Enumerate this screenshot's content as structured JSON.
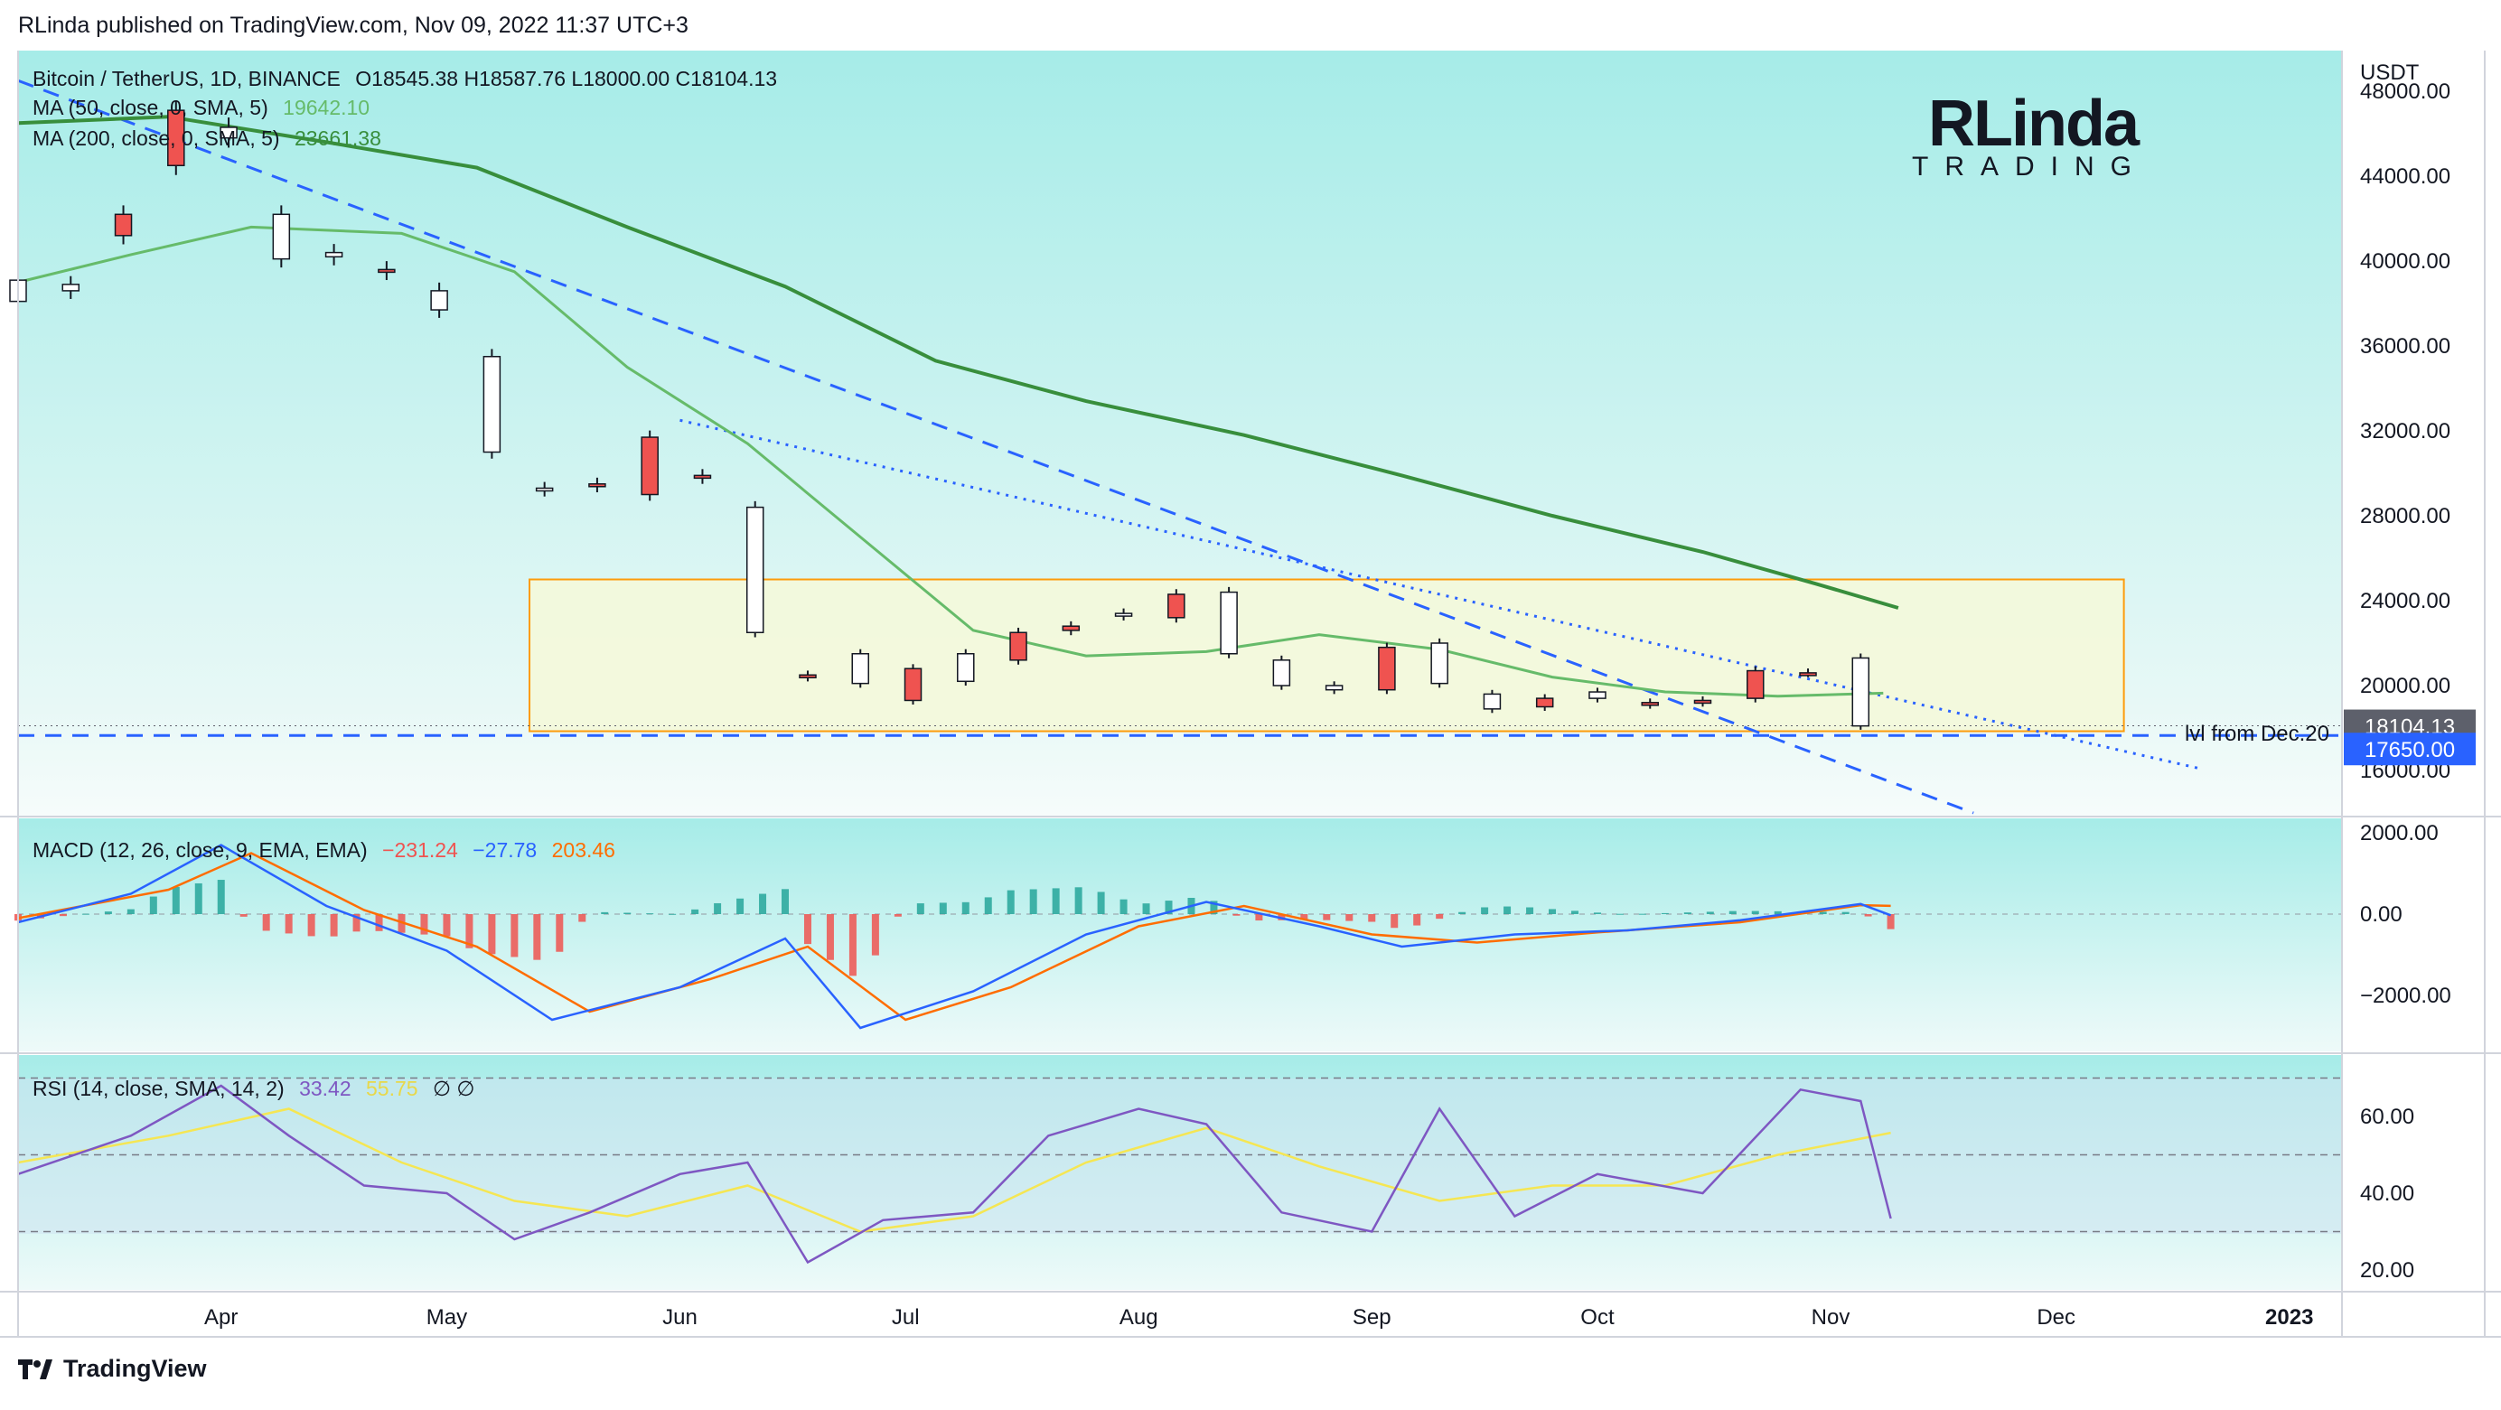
{
  "header": {
    "publisher": "RLinda published on TradingView.com, Nov 09, 2022 11:37 UTC+3"
  },
  "brand": {
    "logo_main": "RLinda",
    "logo_sub": "TRADING"
  },
  "footer": {
    "tradingview": "TradingView"
  },
  "price_legend": {
    "symbol": "Bitcoin / TetherUS, 1D, BINANCE",
    "ohlc": "O18545.38  H18587.76  L18000.00  C18104.13",
    "ma50_label": "MA (50, close, 0, SMA, 5)",
    "ma50_value": "19642.10",
    "ma200_label": "MA (200, close, 0, SMA, 5)",
    "ma200_value": "23661.38"
  },
  "macd_legend": {
    "label": "MACD (12, 26, close, 9, EMA, EMA)",
    "hist": "−231.24",
    "macd": "−27.78",
    "signal": "203.46"
  },
  "rsi_legend": {
    "label": "RSI (14, close, SMA, 14, 2)",
    "rsi": "33.42",
    "ma": "55.75",
    "extra": "∅ ∅"
  },
  "colors": {
    "up": "#ef5350",
    "down": "#26a69a",
    "ma50": "#66bb6a",
    "ma200": "#388e3c",
    "trend": "#2962ff",
    "zone_fill": "#f4fadc",
    "zone_border": "#ff9800",
    "macd_line": "#2962ff",
    "signal_line": "#ff6d00",
    "rsi_line": "#7e57c2",
    "rsi_ma": "#f5e653"
  },
  "chart_data": {
    "type": "candlestick",
    "symbol": "BTCUSDT",
    "timeframe": "1D",
    "x_ticks": [
      "Apr",
      "May",
      "Jun",
      "Jul",
      "Aug",
      "Sep",
      "Oct",
      "Nov",
      "Dec",
      "2023"
    ],
    "price_axis": {
      "unit": "USDT",
      "ticks": [
        "48000.00",
        "44000.00",
        "40000.00",
        "36000.00",
        "32000.00",
        "28000.00",
        "24000.00",
        "20000.00",
        "16000.00"
      ]
    },
    "last_price": "18104.13",
    "level_price": "17650.00",
    "level_label": "lvl from Dec.20",
    "zone": {
      "from": "2022-05-12",
      "to": "2022-12-10",
      "low": 17850,
      "high": 25000
    },
    "trendlines": [
      {
        "style": "dashed",
        "from": [
          "2022-03-05",
          48500
        ],
        "to": [
          "2022-11-20",
          14000
        ]
      },
      {
        "style": "dotted",
        "from": [
          "2022-06-01",
          32500
        ],
        "to": [
          "2022-12-20",
          16100
        ]
      },
      {
        "style": "dashed-horizontal",
        "value": 17650
      }
    ],
    "candles": [
      [
        "2022-03-05",
        39100,
        38100
      ],
      [
        "2022-03-12",
        38900,
        38600
      ],
      [
        "2022-03-19",
        41200,
        42200
      ],
      [
        "2022-03-26",
        44500,
        47100
      ],
      [
        "2022-04-02",
        46300,
        45800
      ],
      [
        "2022-04-09",
        42200,
        40100
      ],
      [
        "2022-04-16",
        40400,
        40200
      ],
      [
        "2022-04-23",
        39500,
        39600
      ],
      [
        "2022-04-30",
        38600,
        37700
      ],
      [
        "2022-05-07",
        35500,
        31000
      ],
      [
        "2022-05-14",
        29300,
        29200
      ],
      [
        "2022-05-21",
        29400,
        29500
      ],
      [
        "2022-05-28",
        29000,
        31700
      ],
      [
        "2022-06-04",
        29800,
        29900
      ],
      [
        "2022-06-11",
        28400,
        22500
      ],
      [
        "2022-06-18",
        20400,
        20500
      ],
      [
        "2022-06-25",
        21500,
        20100
      ],
      [
        "2022-07-02",
        19300,
        20800
      ],
      [
        "2022-07-09",
        21500,
        20200
      ],
      [
        "2022-07-16",
        21200,
        22500
      ],
      [
        "2022-07-23",
        22600,
        22800
      ],
      [
        "2022-07-30",
        23400,
        23300
      ],
      [
        "2022-08-06",
        23200,
        24300
      ],
      [
        "2022-08-13",
        24400,
        21500
      ],
      [
        "2022-08-20",
        21200,
        20000
      ],
      [
        "2022-08-27",
        20000,
        19800
      ],
      [
        "2022-09-03",
        19800,
        21800
      ],
      [
        "2022-09-10",
        22000,
        20100
      ],
      [
        "2022-09-17",
        19600,
        18900
      ],
      [
        "2022-09-24",
        19000,
        19400
      ],
      [
        "2022-10-01",
        19700,
        19400
      ],
      [
        "2022-10-08",
        19100,
        19200
      ],
      [
        "2022-10-15",
        19200,
        19300
      ],
      [
        "2022-10-22",
        19400,
        20700
      ],
      [
        "2022-10-29",
        20600,
        20600
      ],
      [
        "2022-11-05",
        21300,
        18100
      ]
    ],
    "ma50": [
      [
        "2022-03-05",
        39000
      ],
      [
        "2022-03-20",
        40300
      ],
      [
        "2022-04-05",
        41600
      ],
      [
        "2022-04-25",
        41300
      ],
      [
        "2022-05-10",
        39500
      ],
      [
        "2022-05-25",
        35000
      ],
      [
        "2022-06-10",
        31400
      ],
      [
        "2022-06-25",
        27000
      ],
      [
        "2022-07-10",
        22600
      ],
      [
        "2022-07-25",
        21400
      ],
      [
        "2022-08-10",
        21600
      ],
      [
        "2022-08-25",
        22400
      ],
      [
        "2022-09-10",
        21700
      ],
      [
        "2022-09-25",
        20400
      ],
      [
        "2022-10-10",
        19700
      ],
      [
        "2022-10-25",
        19500
      ],
      [
        "2022-11-08",
        19642
      ]
    ],
    "ma200": [
      [
        "2022-03-05",
        46500
      ],
      [
        "2022-03-25",
        46800
      ],
      [
        "2022-04-15",
        45600
      ],
      [
        "2022-05-05",
        44400
      ],
      [
        "2022-05-25",
        41600
      ],
      [
        "2022-06-15",
        38800
      ],
      [
        "2022-07-05",
        35300
      ],
      [
        "2022-07-25",
        33400
      ],
      [
        "2022-08-15",
        31800
      ],
      [
        "2022-09-05",
        29900
      ],
      [
        "2022-09-25",
        28000
      ],
      [
        "2022-10-15",
        26300
      ],
      [
        "2022-10-30",
        24800
      ],
      [
        "2022-11-10",
        23661
      ]
    ],
    "macd": {
      "axis_ticks": [
        "2000.00",
        "0.00",
        "−2000.00"
      ],
      "macd_line": [
        [
          "2022-03-05",
          -200
        ],
        [
          "2022-03-20",
          500
        ],
        [
          "2022-04-01",
          1700
        ],
        [
          "2022-04-15",
          200
        ],
        [
          "2022-05-01",
          -900
        ],
        [
          "2022-05-15",
          -2600
        ],
        [
          "2022-06-01",
          -1800
        ],
        [
          "2022-06-15",
          -600
        ],
        [
          "2022-06-25",
          -2800
        ],
        [
          "2022-07-10",
          -1900
        ],
        [
          "2022-07-25",
          -500
        ],
        [
          "2022-08-10",
          300
        ],
        [
          "2022-08-25",
          -300
        ],
        [
          "2022-09-05",
          -800
        ],
        [
          "2022-09-20",
          -500
        ],
        [
          "2022-10-05",
          -400
        ],
        [
          "2022-10-20",
          -150
        ],
        [
          "2022-11-05",
          250
        ],
        [
          "2022-11-09",
          -28
        ]
      ],
      "signal_line": [
        [
          "2022-03-05",
          -100
        ],
        [
          "2022-03-25",
          600
        ],
        [
          "2022-04-05",
          1500
        ],
        [
          "2022-04-20",
          100
        ],
        [
          "2022-05-05",
          -800
        ],
        [
          "2022-05-20",
          -2400
        ],
        [
          "2022-06-05",
          -1600
        ],
        [
          "2022-06-18",
          -800
        ],
        [
          "2022-07-01",
          -2600
        ],
        [
          "2022-07-15",
          -1800
        ],
        [
          "2022-08-01",
          -300
        ],
        [
          "2022-08-15",
          200
        ],
        [
          "2022-09-01",
          -500
        ],
        [
          "2022-09-15",
          -700
        ],
        [
          "2022-10-01",
          -450
        ],
        [
          "2022-10-20",
          -200
        ],
        [
          "2022-11-05",
          220
        ],
        [
          "2022-11-09",
          203
        ]
      ]
    },
    "rsi": {
      "axis_ticks": [
        "60.00",
        "40.00",
        "20.00"
      ],
      "bands": [
        70,
        50,
        30
      ],
      "rsi_line": [
        [
          "2022-03-05",
          45
        ],
        [
          "2022-03-20",
          55
        ],
        [
          "2022-04-01",
          68
        ],
        [
          "2022-04-10",
          55
        ],
        [
          "2022-04-20",
          42
        ],
        [
          "2022-05-01",
          40
        ],
        [
          "2022-05-10",
          28
        ],
        [
          "2022-05-20",
          35
        ],
        [
          "2022-06-01",
          45
        ],
        [
          "2022-06-10",
          48
        ],
        [
          "2022-06-18",
          22
        ],
        [
          "2022-06-28",
          33
        ],
        [
          "2022-07-10",
          35
        ],
        [
          "2022-07-20",
          55
        ],
        [
          "2022-08-01",
          62
        ],
        [
          "2022-08-10",
          58
        ],
        [
          "2022-08-20",
          35
        ],
        [
          "2022-09-01",
          30
        ],
        [
          "2022-09-10",
          62
        ],
        [
          "2022-09-20",
          34
        ],
        [
          "2022-10-01",
          45
        ],
        [
          "2022-10-15",
          40
        ],
        [
          "2022-10-28",
          67
        ],
        [
          "2022-11-05",
          64
        ],
        [
          "2022-11-09",
          33.4
        ]
      ],
      "ma_line": [
        [
          "2022-03-05",
          48
        ],
        [
          "2022-03-25",
          55
        ],
        [
          "2022-04-10",
          62
        ],
        [
          "2022-04-25",
          48
        ],
        [
          "2022-05-10",
          38
        ],
        [
          "2022-05-25",
          34
        ],
        [
          "2022-06-10",
          42
        ],
        [
          "2022-06-25",
          30
        ],
        [
          "2022-07-10",
          34
        ],
        [
          "2022-07-25",
          48
        ],
        [
          "2022-08-10",
          57
        ],
        [
          "2022-08-25",
          47
        ],
        [
          "2022-09-10",
          38
        ],
        [
          "2022-09-25",
          42
        ],
        [
          "2022-10-10",
          42
        ],
        [
          "2022-10-25",
          50
        ],
        [
          "2022-11-09",
          55.75
        ]
      ]
    }
  }
}
